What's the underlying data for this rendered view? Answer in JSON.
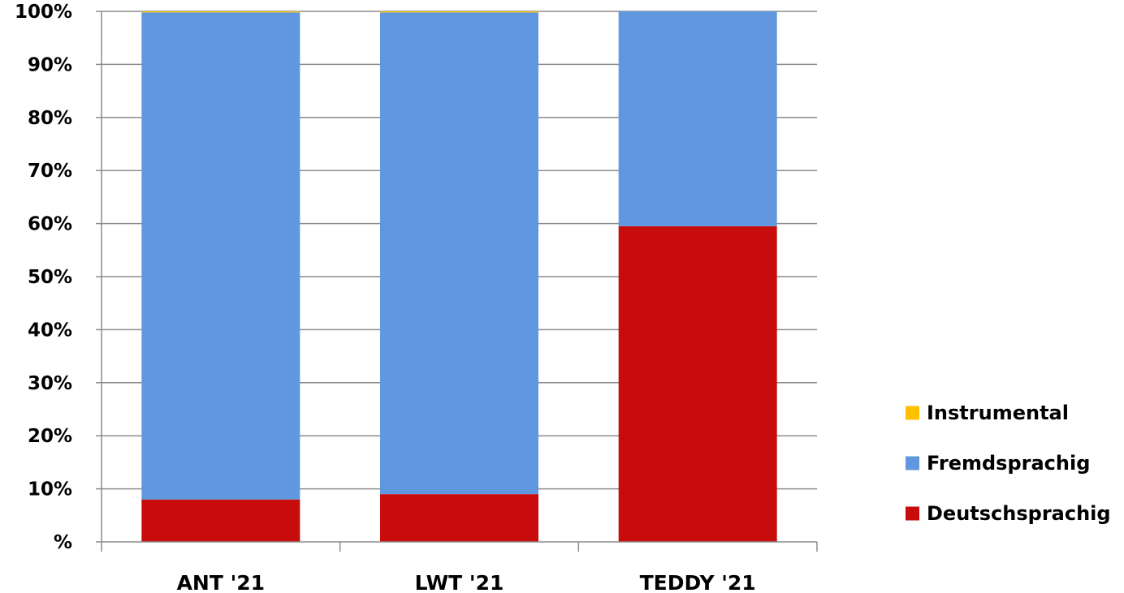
{
  "chart_data": {
    "type": "bar",
    "stacked": true,
    "categories": [
      "ANT '21",
      "LWT '21",
      "TEDDY '21"
    ],
    "series": [
      {
        "name": "Deutschsprachig",
        "color": "#C80B0B",
        "values": [
          8,
          9,
          59.5
        ]
      },
      {
        "name": "Fremdsprachig",
        "color": "#6097DE",
        "values": [
          91.8,
          90.8,
          40.5
        ]
      },
      {
        "name": "Instrumental",
        "color": "#FFC000",
        "values": [
          0.2,
          0.2,
          0
        ]
      }
    ],
    "y_ticks": [
      "%",
      "10%",
      "20%",
      "30%",
      "40%",
      "50%",
      "60%",
      "70%",
      "80%",
      "90%",
      "100%"
    ],
    "ylim": [
      0,
      100
    ],
    "grid": true,
    "legend_position": "right",
    "legend_order": [
      "Instrumental",
      "Fremdsprachig",
      "Deutschsprachig"
    ],
    "title": "",
    "xlabel": "",
    "ylabel": ""
  }
}
